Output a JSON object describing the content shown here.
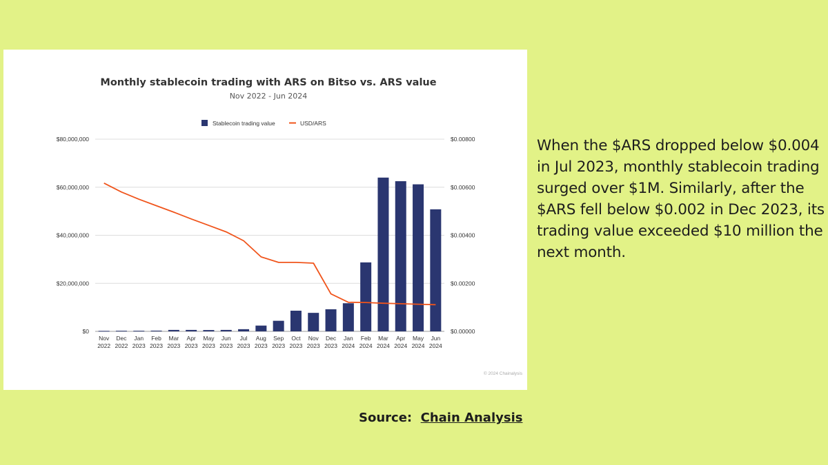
{
  "caption": "When the $ARS dropped below $0.004 in Jul 2023, monthly stablecoin trading surged over $1M. Similarly, after the $ARS fell below $0.002 in Dec 2023, its trading value exceeded $10 million the next month.",
  "source": {
    "label": "Source:  ",
    "link_text": "Chain Analysis"
  },
  "chart_data": {
    "type": "bar",
    "title": "Monthly stablecoin trading with ARS on Bitso vs. ARS value",
    "subtitle": "Nov 2022 - Jun 2024",
    "watermark": "© 2024 Chainalysis",
    "categories": [
      [
        "Nov",
        "2022"
      ],
      [
        "Dec",
        "2022"
      ],
      [
        "Jan",
        "2023"
      ],
      [
        "Feb",
        "2023"
      ],
      [
        "Mar",
        "2023"
      ],
      [
        "Apr",
        "2023"
      ],
      [
        "May",
        "2023"
      ],
      [
        "Jun",
        "2023"
      ],
      [
        "Jul",
        "2023"
      ],
      [
        "Aug",
        "2023"
      ],
      [
        "Sep",
        "2023"
      ],
      [
        "Oct",
        "2023"
      ],
      [
        "Nov",
        "2023"
      ],
      [
        "Dec",
        "2023"
      ],
      [
        "Jan",
        "2024"
      ],
      [
        "Feb",
        "2024"
      ],
      [
        "Mar",
        "2024"
      ],
      [
        "Apr",
        "2024"
      ],
      [
        "May",
        "2024"
      ],
      [
        "Jun",
        "2024"
      ]
    ],
    "legend_position": "top-center",
    "grid": true,
    "y_left": {
      "ylim": [
        0,
        80000000
      ],
      "ticks": [
        0,
        20000000,
        40000000,
        60000000,
        80000000
      ],
      "tick_labels": [
        "$0",
        "$20,000,000",
        "$40,000,000",
        "$60,000,000",
        "$80,000,000"
      ]
    },
    "y_right": {
      "ylim": [
        0,
        0.008
      ],
      "ticks": [
        0,
        0.002,
        0.004,
        0.006,
        0.008
      ],
      "tick_labels": [
        "$0.00000",
        "$0.00200",
        "$0.00400",
        "$0.00600",
        "$0.00800"
      ]
    },
    "series": [
      {
        "name": "Stablecoin trading value",
        "type": "bar",
        "axis": "left",
        "color": "#2a3670",
        "values": [
          200000,
          250000,
          250000,
          300000,
          600000,
          600000,
          550000,
          600000,
          900000,
          2400000,
          4400000,
          8600000,
          7700000,
          9200000,
          11700000,
          28700000,
          64000000,
          62500000,
          61200000,
          50800000
        ]
      },
      {
        "name": "USD/ARS",
        "type": "line",
        "axis": "right",
        "color": "#f0541b",
        "values": [
          0.00617,
          0.0058,
          0.0055,
          0.00523,
          0.00496,
          0.00468,
          0.00441,
          0.00414,
          0.00377,
          0.0031,
          0.00287,
          0.00287,
          0.00284,
          0.00156,
          0.00121,
          0.0012,
          0.00117,
          0.00115,
          0.00113,
          0.00111
        ]
      }
    ]
  }
}
